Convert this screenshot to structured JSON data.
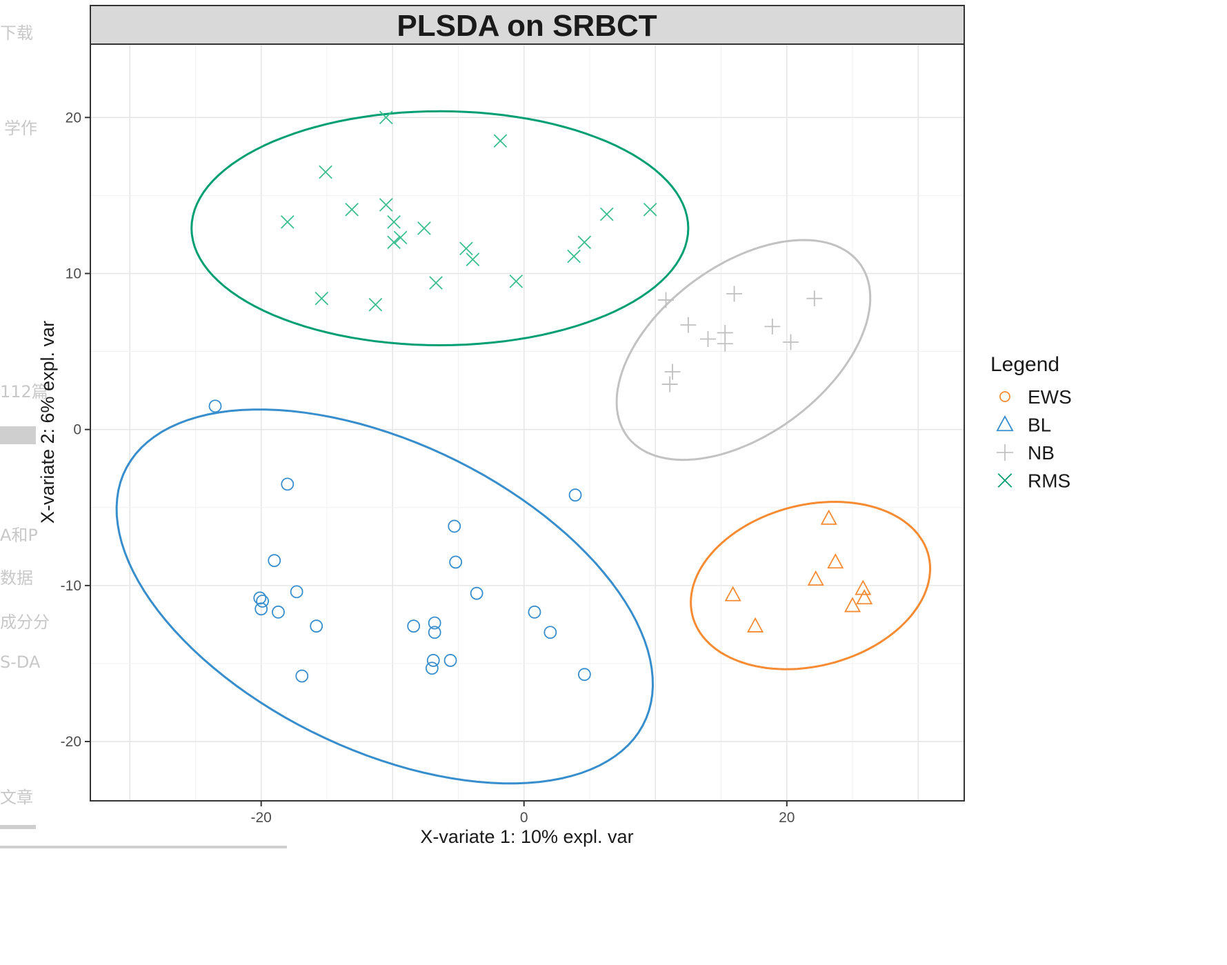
{
  "background_text": [
    "下载",
    "学作",
    "112篇",
    "A和P",
    "数据",
    "成分分",
    "S-DA",
    "文章"
  ],
  "chart_data": {
    "type": "scatter",
    "title": "PLSDA on SRBCT",
    "xlabel": "X-variate 1: 10% expl. var",
    "ylabel": "X-variate 2: 6% expl. var",
    "xlim": [
      -33,
      33.5
    ],
    "ylim": [
      -23.8,
      24.7
    ],
    "x_ticks": [
      -20,
      0,
      20
    ],
    "y_ticks": [
      20,
      10,
      0,
      -10,
      -20
    ],
    "x_tick_labels": [
      "-20",
      "0",
      "20"
    ],
    "y_tick_labels": [
      "20",
      "10",
      "0",
      "-10",
      "-20"
    ],
    "grid": true,
    "legend": {
      "title": "Legend",
      "position": "right",
      "entries": [
        {
          "label": "EWS",
          "marker": "circle",
          "color": "#F68B33"
        },
        {
          "label": "BL",
          "marker": "triangle",
          "color": "#388ECC"
        },
        {
          "label": "NB",
          "marker": "plus",
          "color": "#C2C2C2"
        },
        {
          "label": "RMS",
          "marker": "cross",
          "color": "#009E73"
        }
      ]
    },
    "series": [
      {
        "name": "RMS",
        "marker": "cross",
        "color": "#3BBF8F",
        "points": [
          [
            -10.5,
            20
          ],
          [
            -1.8,
            18.5
          ],
          [
            -15.1,
            16.5
          ],
          [
            -13.1,
            14.1
          ],
          [
            -10.5,
            14.4
          ],
          [
            -9.9,
            13.3
          ],
          [
            -7.6,
            12.9
          ],
          [
            -18,
            13.3
          ],
          [
            -9.4,
            12.3
          ],
          [
            -9.9,
            12
          ],
          [
            -4.4,
            11.6
          ],
          [
            -3.9,
            10.9
          ],
          [
            6.3,
            13.8
          ],
          [
            9.6,
            14.1
          ],
          [
            4.6,
            12
          ],
          [
            3.8,
            11.1
          ],
          [
            -6.7,
            9.4
          ],
          [
            -0.6,
            9.5
          ],
          [
            -15.4,
            8.4
          ],
          [
            -11.3,
            8
          ]
        ]
      },
      {
        "name": "NB",
        "marker": "plus",
        "color": "#BFBFBF",
        "points": [
          [
            10.8,
            8.3
          ],
          [
            16,
            8.7
          ],
          [
            22.1,
            8.4
          ],
          [
            12.5,
            6.7
          ],
          [
            14,
            5.8
          ],
          [
            15.3,
            6.2
          ],
          [
            15.3,
            5.5
          ],
          [
            18.9,
            6.6
          ],
          [
            20.3,
            5.6
          ],
          [
            11.3,
            3.7
          ],
          [
            11.1,
            2.9
          ]
        ]
      },
      {
        "name": "BL",
        "marker": "circle",
        "color": "#388ECC",
        "points": [
          [
            -23.5,
            1.5
          ],
          [
            -18,
            -3.5
          ],
          [
            3.9,
            -4.2
          ],
          [
            -5.3,
            -6.2
          ],
          [
            -19,
            -8.4
          ],
          [
            -5.2,
            -8.5
          ],
          [
            -17.3,
            -10.4
          ],
          [
            -3.6,
            -10.5
          ],
          [
            -20.1,
            -10.8
          ],
          [
            -19.9,
            -11
          ],
          [
            -20,
            -11.5
          ],
          [
            -18.7,
            -11.7
          ],
          [
            0.8,
            -11.7
          ],
          [
            -15.8,
            -12.6
          ],
          [
            -8.4,
            -12.6
          ],
          [
            -6.8,
            -12.4
          ],
          [
            -6.8,
            -13
          ],
          [
            2,
            -13
          ],
          [
            -6.9,
            -14.8
          ],
          [
            -5.6,
            -14.8
          ],
          [
            -7,
            -15.3
          ],
          [
            -16.9,
            -15.8
          ],
          [
            4.6,
            -15.7
          ]
        ]
      },
      {
        "name": "EWS",
        "marker": "triangle",
        "color": "#F68B33",
        "points": [
          [
            23.2,
            -5.7
          ],
          [
            23.7,
            -8.5
          ],
          [
            22.2,
            -9.6
          ],
          [
            15.9,
            -10.6
          ],
          [
            25.8,
            -10.2
          ],
          [
            25.9,
            -10.8
          ],
          [
            25,
            -11.3
          ],
          [
            17.6,
            -12.6
          ]
        ]
      }
    ],
    "ellipses": [
      {
        "group": "RMS",
        "color": "#009E73",
        "center": [
          -6.4,
          12.9
        ],
        "radii": [
          18.9,
          7.5
        ],
        "angle_deg": 0
      },
      {
        "group": "NB",
        "color": "#C2C2C2",
        "center": [
          16.7,
          5.1
        ],
        "radii": [
          10.5,
          5.7
        ],
        "angle_deg": 28
      },
      {
        "group": "BL",
        "color": "#388ECC",
        "center": [
          -10.6,
          -10.7
        ],
        "radii": [
          21.4,
          10.1
        ],
        "angle_deg": -20
      },
      {
        "group": "EWS",
        "color": "#F68B33",
        "center": [
          21.8,
          -10
        ],
        "radii": [
          9.2,
          5.2
        ],
        "angle_deg": 10
      }
    ]
  }
}
